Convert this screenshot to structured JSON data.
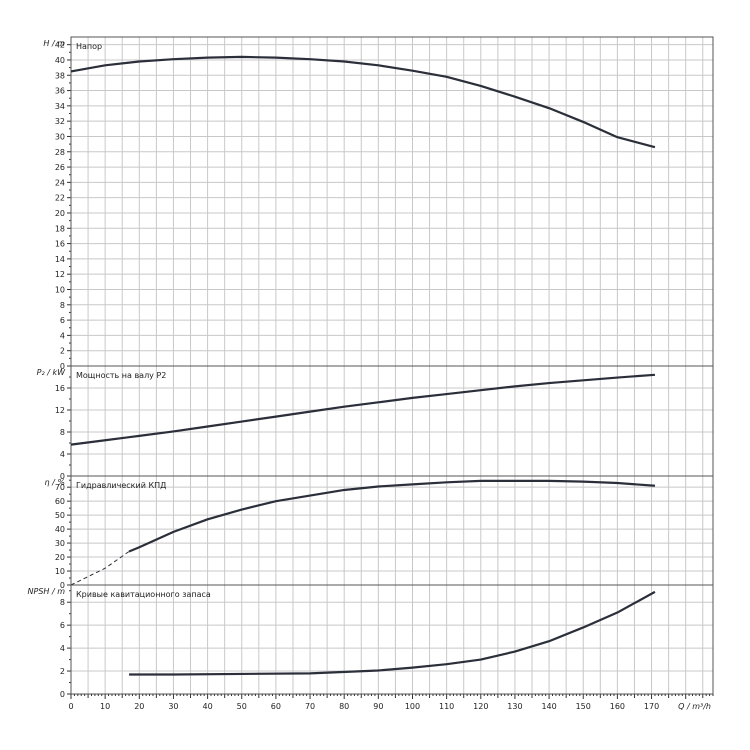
{
  "chart_data": {
    "type": "line",
    "x_axis": {
      "label": "Q / m³/h",
      "min": 0,
      "max": 188,
      "ticks": [
        0,
        10,
        20,
        30,
        40,
        50,
        60,
        70,
        80,
        90,
        100,
        110,
        120,
        130,
        140,
        150,
        160,
        170
      ]
    },
    "panels": [
      {
        "id": "head",
        "title": "Напор",
        "ylabel": "H / m",
        "ylim": [
          0,
          43
        ],
        "yticks": [
          0,
          2,
          4,
          6,
          8,
          10,
          12,
          14,
          16,
          18,
          20,
          22,
          24,
          26,
          28,
          30,
          32,
          34,
          36,
          38,
          40,
          42
        ],
        "series": [
          {
            "x": [
              0,
              10,
              20,
              30,
              40,
              50,
              60,
              70,
              80,
              90,
              100,
              110,
              120,
              130,
              140,
              150,
              160,
              171
            ],
            "y": [
              38.5,
              39.3,
              39.8,
              40.1,
              40.3,
              40.4,
              40.3,
              40.1,
              39.8,
              39.3,
              38.6,
              37.8,
              36.6,
              35.2,
              33.7,
              31.9,
              29.9,
              28.6
            ],
            "dashed_until": null
          }
        ]
      },
      {
        "id": "power",
        "title": "Мощность на валу P2",
        "ylabel": "P₂ / kW",
        "ylim": [
          0,
          20
        ],
        "yticks": [
          0,
          4,
          8,
          12,
          16
        ],
        "series": [
          {
            "x": [
              0,
              10,
              20,
              30,
              40,
              50,
              60,
              70,
              80,
              90,
              100,
              110,
              120,
              130,
              140,
              150,
              160,
              171
            ],
            "y": [
              5.7,
              6.5,
              7.3,
              8.1,
              9.0,
              9.9,
              10.8,
              11.7,
              12.6,
              13.4,
              14.2,
              14.9,
              15.6,
              16.3,
              16.9,
              17.4,
              17.9,
              18.4
            ],
            "dashed_until": null
          }
        ]
      },
      {
        "id": "efficiency",
        "title": "Гидравлический КПД",
        "ylabel": "η / %",
        "ylim": [
          0,
          78
        ],
        "yticks": [
          0,
          10,
          20,
          30,
          40,
          50,
          60,
          70
        ],
        "series": [
          {
            "x": [
              0,
              10,
              17,
              20,
              30,
              40,
              50,
              60,
              70,
              80,
              90,
              100,
              110,
              120,
              130,
              140,
              150,
              160,
              171
            ],
            "y": [
              0,
              12,
              24,
              27,
              38,
              47,
              54,
              60,
              64,
              68,
              70.5,
              72,
              73.5,
              74.5,
              74.5,
              74.5,
              74,
              73,
              71
            ],
            "dashed_until": 17
          }
        ]
      },
      {
        "id": "npsh",
        "title": "Кривые кавитационного запаса",
        "ylabel": "NPSH / m",
        "ylim": [
          0,
          9.5
        ],
        "yticks": [
          0,
          2,
          4,
          6,
          8
        ],
        "series": [
          {
            "x": [
              17,
              30,
              50,
              70,
              90,
              100,
              110,
              120,
              130,
              140,
              150,
              160,
              171
            ],
            "y": [
              1.7,
              1.7,
              1.75,
              1.8,
              2.05,
              2.3,
              2.6,
              3.0,
              3.7,
              4.6,
              5.8,
              7.1,
              8.9
            ],
            "dashed_until": null
          }
        ]
      }
    ]
  }
}
